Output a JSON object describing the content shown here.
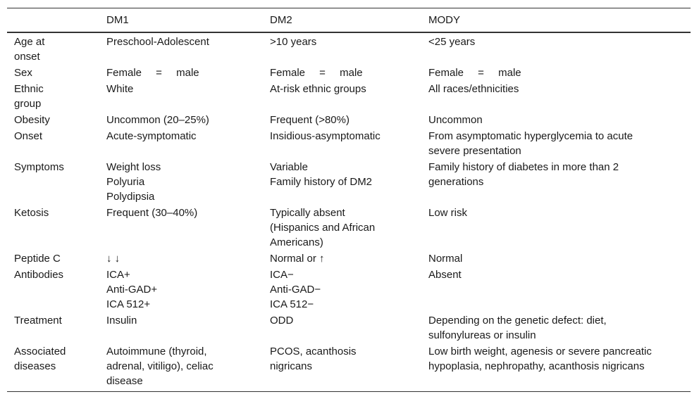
{
  "table": {
    "columns": [
      "DM1",
      "DM2",
      "MODY"
    ],
    "rows": [
      {
        "label": "Age at onset",
        "cells": [
          [
            "Preschool-Adolescent"
          ],
          [
            ">10 years"
          ],
          [
            "<25 years"
          ]
        ]
      },
      {
        "label": "Sex",
        "cells": [
          [
            "Female = male"
          ],
          [
            "Female = male"
          ],
          [
            "Female = male"
          ]
        ]
      },
      {
        "label": "Ethnic group",
        "cells": [
          [
            "White"
          ],
          [
            "At-risk ethnic groups"
          ],
          [
            "All races/ethnicities"
          ]
        ]
      },
      {
        "label": "Obesity",
        "cells": [
          [
            "Uncommon (20–25%)"
          ],
          [
            "Frequent (>80%)"
          ],
          [
            "Uncommon"
          ]
        ]
      },
      {
        "label": "Onset",
        "cells": [
          [
            "Acute-symptomatic"
          ],
          [
            "Insidious-asymptomatic"
          ],
          [
            "From asymptomatic hyperglycemia to acute severe presentation"
          ]
        ]
      },
      {
        "label": "Symptoms",
        "cells": [
          [
            "Weight loss",
            "Polyuria",
            "Polydipsia"
          ],
          [
            "Variable",
            "Family history of DM2"
          ],
          [
            "Family history of diabetes in more than 2 generations"
          ]
        ]
      },
      {
        "label": "Ketosis",
        "cells": [
          [
            "Frequent (30–40%)"
          ],
          [
            "Typically absent (Hispanics and African Americans)"
          ],
          [
            "Low risk"
          ]
        ]
      },
      {
        "label": "Peptide C",
        "cells": [
          [
            "↓ ↓"
          ],
          [
            "Normal or ↑"
          ],
          [
            "Normal"
          ]
        ]
      },
      {
        "label": "Antibodies",
        "cells": [
          [
            "ICA+",
            "Anti-GAD+",
            "ICA 512+"
          ],
          [
            "ICA−",
            "Anti-GAD−",
            "ICA 512−"
          ],
          [
            "Absent"
          ]
        ]
      },
      {
        "label": "Treatment",
        "cells": [
          [
            "Insulin"
          ],
          [
            "ODD"
          ],
          [
            "Depending on the genetic defect: diet, sulfonylureas or insulin"
          ]
        ]
      },
      {
        "label": "Associated diseases",
        "cells": [
          [
            "Autoimmune (thyroid, adrenal, vitiligo), celiac disease"
          ],
          [
            "PCOS, acanthosis nigricans"
          ],
          [
            "Low birth weight, agenesis or severe pancreatic hypoplasia, nephropathy, acanthosis nigricans"
          ]
        ]
      }
    ]
  }
}
